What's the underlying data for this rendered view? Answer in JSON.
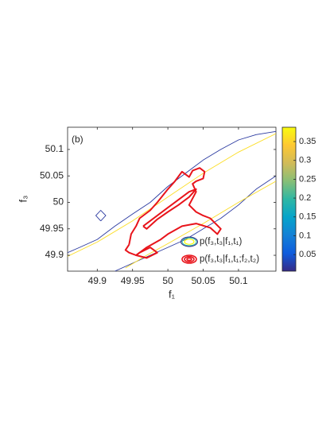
{
  "chart_data": {
    "type": "contour",
    "panel_label": "(b)",
    "x_label": "f₁",
    "y_label": "f₃",
    "xlim": [
      49.858,
      50.153
    ],
    "ylim": [
      49.87,
      50.142
    ],
    "xticks": [
      49.9,
      49.95,
      50,
      50.05,
      50.1
    ],
    "yticks": [
      49.9,
      49.95,
      50,
      50.05,
      50.1
    ],
    "clim": [
      0.006,
      0.388
    ],
    "cticks": [
      0.05,
      0.1,
      0.15,
      0.2,
      0.25,
      0.3,
      0.35
    ],
    "colormap": [
      "#352a87",
      "#0f5cdd",
      "#1481d6",
      "#06a4ca",
      "#2eb7a4",
      "#87bf77",
      "#d1bb59",
      "#fec832",
      "#f9fb0e"
    ],
    "legend_position": "southeast",
    "series": [
      {
        "name": "p(f₃,t₃|f₁,t₁)",
        "color": "#2eb7a4",
        "contours": [
          {
            "level": 0.02,
            "x": [
              49.858,
              49.875,
              49.9,
              49.925,
              49.95,
              49.975,
              50.0,
              50.025,
              50.05,
              50.075,
              50.1,
              50.125,
              50.153
            ],
            "y": [
              49.905,
              49.915,
              49.93,
              49.955,
              49.978,
              50.0,
              50.03,
              50.055,
              50.08,
              50.1,
              50.118,
              50.128,
              50.134
            ]
          },
          {
            "level": 0.02,
            "x": [
              49.925,
              49.95,
              49.975,
              50.0,
              50.025,
              50.05,
              50.075,
              50.1,
              50.125,
              50.153
            ],
            "y": [
              49.87,
              49.885,
              49.9,
              49.915,
              49.93,
              49.95,
              49.97,
              49.995,
              50.025,
              50.05
            ]
          },
          {
            "level": 0.02,
            "x": [
              49.905,
              49.912,
              49.905,
              49.898,
              49.905
            ],
            "y": [
              49.965,
              49.975,
              49.985,
              49.975,
              49.965
            ]
          },
          {
            "level": 0.36,
            "x": [
              49.858,
              49.9,
              49.95,
              50.0,
              50.05,
              50.1,
              50.153
            ],
            "y": [
              49.898,
              49.925,
              49.965,
              50.01,
              50.055,
              50.095,
              50.13
            ]
          },
          {
            "level": 0.36,
            "x": [
              49.94,
              49.97,
              50.0,
              50.05,
              50.1,
              50.153
            ],
            "y": [
              49.876,
              49.9,
              49.922,
              49.96,
              50.0,
              50.04
            ]
          }
        ]
      },
      {
        "name": "p(f₃,t₃|f₁,t₁;f₂,t₂)",
        "color": "#e8141b",
        "contours": [
          {
            "level": 0.1,
            "x": [
              49.945,
              49.948,
              49.955,
              49.96,
              49.975,
              49.985,
              50.0,
              50.01,
              50.02,
              50.03,
              50.035,
              50.045,
              50.052,
              50.05,
              50.04,
              50.035,
              50.04,
              50.03,
              50.04,
              50.05,
              50.06,
              50.075,
              50.07,
              50.06,
              50.04,
              50.02,
              50.0,
              49.99,
              49.97,
              49.955,
              49.945,
              49.94,
              49.945
            ],
            "y": [
              49.92,
              49.94,
              49.955,
              49.97,
              49.985,
              50.0,
              50.025,
              50.04,
              50.058,
              50.048,
              50.06,
              50.065,
              50.058,
              50.045,
              50.04,
              50.035,
              50.02,
              49.995,
              49.982,
              49.975,
              49.97,
              49.95,
              49.94,
              49.952,
              49.96,
              49.955,
              49.94,
              49.93,
              49.915,
              49.9,
              49.905,
              49.91,
              49.92
            ]
          },
          {
            "level": 0.1,
            "x": [
              49.965,
              49.985,
              50.0,
              50.015,
              50.03,
              50.04,
              50.03,
              50.015,
              50.0,
              49.985,
              49.97,
              49.965
            ],
            "y": [
              49.955,
              49.975,
              49.99,
              50.005,
              50.02,
              50.025,
              50.01,
              49.995,
              49.982,
              49.968,
              49.95,
              49.955
            ]
          },
          {
            "level": 0.1,
            "x": [
              49.96,
              49.975,
              49.985,
              49.97,
              49.955,
              49.96
            ],
            "y": [
              49.905,
              49.915,
              49.905,
              49.895,
              49.9,
              49.905
            ]
          }
        ]
      }
    ]
  }
}
